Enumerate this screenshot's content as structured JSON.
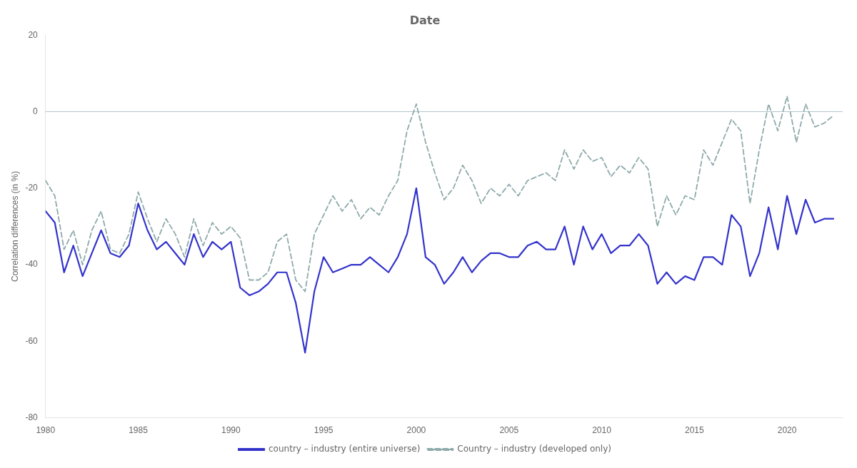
{
  "chart_data": {
    "type": "line",
    "title": "Date",
    "y_label": "Correlation differences (in %)",
    "x": [
      1980,
      1980.5,
      1981,
      1981.5,
      1982,
      1982.5,
      1983,
      1983.5,
      1984,
      1984.5,
      1985,
      1985.5,
      1986,
      1986.5,
      1987,
      1987.5,
      1988,
      1988.5,
      1989,
      1989.5,
      1990,
      1990.5,
      1991,
      1991.5,
      1992,
      1992.5,
      1993,
      1993.5,
      1994,
      1994.5,
      1995,
      1995.5,
      1996,
      1996.5,
      1997,
      1997.5,
      1998,
      1998.5,
      1999,
      1999.5,
      2000,
      2000.5,
      2001,
      2001.5,
      2002,
      2002.5,
      2003,
      2003.5,
      2004,
      2004.5,
      2005,
      2005.5,
      2006,
      2006.5,
      2007,
      2007.5,
      2008,
      2008.5,
      2009,
      2009.5,
      2010,
      2010.5,
      2011,
      2011.5,
      2012,
      2012.5,
      2013,
      2013.5,
      2014,
      2014.5,
      2015,
      2015.5,
      2016,
      2016.5,
      2017,
      2017.5,
      2018,
      2018.5,
      2019,
      2019.5,
      2020,
      2020.5,
      2021,
      2021.5,
      2022,
      2022.5
    ],
    "series": [
      {
        "name": "country – industry (entire universe)",
        "color": "#3333cc",
        "line_style": "solid",
        "values": [
          -26,
          -29,
          -42,
          -35,
          -43,
          -37,
          -31,
          -37,
          -38,
          -35,
          -24,
          -31,
          -36,
          -34,
          -37,
          -40,
          -32,
          -38,
          -34,
          -36,
          -34,
          -46,
          -48,
          -47,
          -45,
          -42,
          -42,
          -50,
          -63,
          -47,
          -38,
          -42,
          -41,
          -40,
          -40,
          -38,
          -40,
          -42,
          -38,
          -32,
          -20,
          -38,
          -40,
          -45,
          -42,
          -38,
          -42,
          -39,
          -37,
          -37,
          -38,
          -38,
          -35,
          -34,
          -36,
          -36,
          -30,
          -40,
          -30,
          -36,
          -32,
          -37,
          -35,
          -35,
          -32,
          -35,
          -45,
          -42,
          -45,
          -43,
          -44,
          -38,
          -38,
          -40,
          -27,
          -30,
          -43,
          -37,
          -25,
          -36,
          -22,
          -32,
          -23,
          -29,
          -28,
          -28
        ]
      },
      {
        "name": "Country – industry (developed only)",
        "color": "#8FAAAB",
        "line_style": "dashed",
        "values": [
          -18,
          -22,
          -36,
          -31,
          -40,
          -31,
          -26,
          -36,
          -37,
          -32,
          -21,
          -28,
          -34,
          -28,
          -32,
          -38,
          -28,
          -35,
          -29,
          -32,
          -30,
          -33,
          -44,
          -44,
          -42,
          -34,
          -32,
          -44,
          -47,
          -32,
          -27,
          -22,
          -26,
          -23,
          -28,
          -25,
          -27,
          -22,
          -18,
          -5,
          2,
          -8,
          -16,
          -23,
          -20,
          -14,
          -18,
          -24,
          -20,
          -22,
          -19,
          -22,
          -18,
          -17,
          -16,
          -18,
          -10,
          -15,
          -10,
          -13,
          -12,
          -17,
          -14,
          -16,
          -12,
          -15,
          -30,
          -22,
          -27,
          -22,
          -23,
          -10,
          -14,
          -8,
          -2,
          -5,
          -24,
          -10,
          2,
          -5,
          4,
          -8,
          2,
          -4,
          -3,
          -1
        ]
      }
    ],
    "hline": {
      "y": 0,
      "color": "#b0c4cc"
    },
    "xlim": [
      1980,
      2023
    ],
    "xticks": [
      1980,
      1985,
      1990,
      1995,
      2000,
      2005,
      2010,
      2015,
      2020
    ],
    "ylim": [
      -80,
      20
    ],
    "yticks": [
      -80,
      -60,
      -40,
      -20,
      0,
      20
    ],
    "grid": false,
    "legend": "bottom"
  }
}
